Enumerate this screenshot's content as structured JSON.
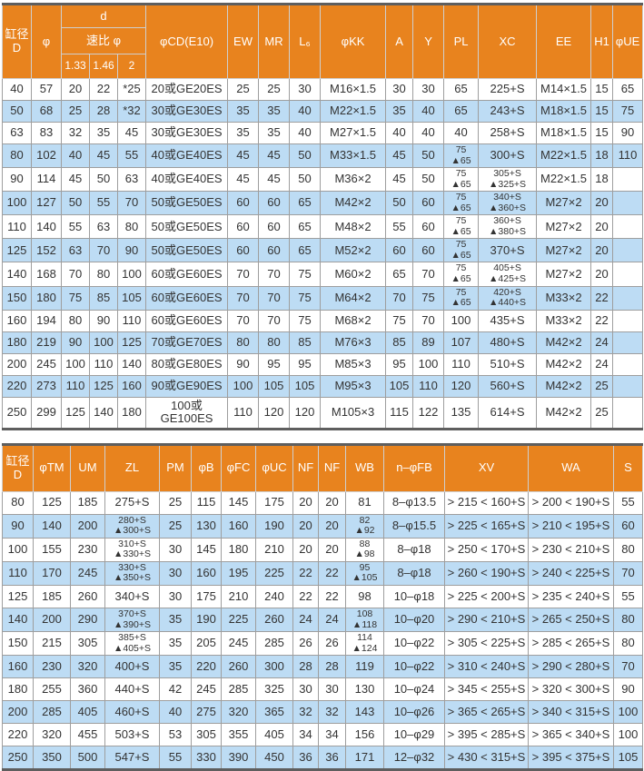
{
  "colors": {
    "header_bg": "#E8831E",
    "alt_row_bg": "#BDDCF4",
    "border_dark": "#5e5e5e",
    "border_light": "#9e9e9e",
    "header_text": "#ffffff",
    "body_text": "#333333"
  },
  "table1": {
    "headers": {
      "bore": "缸径\nD",
      "phi": "φ",
      "d_group": "d",
      "ratio": "速比 φ",
      "r133": "1.33",
      "r146": "1.46",
      "r2": "2",
      "cd": "φCD(E10)",
      "ew": "EW",
      "mr": "MR",
      "l6": "L₆",
      "kk": "φKK",
      "a": "A",
      "y": "Y",
      "pl": "PL",
      "xc": "XC",
      "ee": "EE",
      "h1": "H1",
      "ue": "φUE"
    },
    "rows": [
      [
        "40",
        "57",
        "20",
        "22",
        "*25",
        "20或GE20ES",
        "25",
        "25",
        "30",
        "M16×1.5",
        "30",
        "30",
        "65",
        "225+S",
        "M14×1.5",
        "15",
        "65"
      ],
      [
        "50",
        "68",
        "25",
        "28",
        "*32",
        "30或GE30ES",
        "35",
        "35",
        "40",
        "M22×1.5",
        "35",
        "40",
        "65",
        "243+S",
        "M18×1.5",
        "15",
        "75"
      ],
      [
        "63",
        "83",
        "32",
        "35",
        "45",
        "30或GE30ES",
        "35",
        "35",
        "40",
        "M27×1.5",
        "40",
        "40",
        "40",
        "258+S",
        "M18×1.5",
        "15",
        "90"
      ],
      [
        "80",
        "102",
        "40",
        "45",
        "55",
        "40或GE40ES",
        "45",
        "45",
        "50",
        "M33×1.5",
        "45",
        "50",
        "75\n▲65",
        "300+S",
        "M22×1.5",
        "18",
        "110"
      ],
      [
        "90",
        "114",
        "45",
        "50",
        "63",
        "40或GE40ES",
        "45",
        "45",
        "50",
        "M36×2",
        "45",
        "50",
        "75\n▲65",
        "305+S\n▲325+S",
        "M22×1.5",
        "18",
        ""
      ],
      [
        "100",
        "127",
        "50",
        "55",
        "70",
        "50或GE50ES",
        "60",
        "60",
        "65",
        "M42×2",
        "50",
        "60",
        "75\n▲65",
        "340+S\n▲360+S",
        "M27×2",
        "20",
        ""
      ],
      [
        "110",
        "140",
        "55",
        "63",
        "80",
        "50或GE50ES",
        "60",
        "60",
        "65",
        "M48×2",
        "55",
        "60",
        "75\n▲65",
        "360+S\n▲380+S",
        "M27×2",
        "20",
        ""
      ],
      [
        "125",
        "152",
        "63",
        "70",
        "90",
        "50或GE50ES",
        "60",
        "60",
        "65",
        "M52×2",
        "60",
        "60",
        "75\n▲65",
        "370+S",
        "M27×2",
        "20",
        ""
      ],
      [
        "140",
        "168",
        "70",
        "80",
        "100",
        "60或GE60ES",
        "70",
        "70",
        "75",
        "M60×2",
        "65",
        "70",
        "75\n▲65",
        "405+S\n▲425+S",
        "M27×2",
        "20",
        ""
      ],
      [
        "150",
        "180",
        "75",
        "85",
        "105",
        "60或GE60ES",
        "70",
        "70",
        "75",
        "M64×2",
        "70",
        "75",
        "75\n▲65",
        "420+S\n▲440+S",
        "M33×2",
        "22",
        ""
      ],
      [
        "160",
        "194",
        "80",
        "90",
        "110",
        "60或GE60ES",
        "70",
        "70",
        "75",
        "M68×2",
        "75",
        "70",
        "100",
        "435+S",
        "M33×2",
        "22",
        ""
      ],
      [
        "180",
        "219",
        "90",
        "100",
        "125",
        "70或GE70ES",
        "80",
        "80",
        "85",
        "M76×3",
        "85",
        "89",
        "107",
        "480+S",
        "M42×2",
        "24",
        ""
      ],
      [
        "200",
        "245",
        "100",
        "110",
        "140",
        "80或GE80ES",
        "90",
        "95",
        "95",
        "M85×3",
        "95",
        "100",
        "110",
        "510+S",
        "M42×2",
        "24",
        ""
      ],
      [
        "220",
        "273",
        "110",
        "125",
        "160",
        "90或GE90ES",
        "100",
        "105",
        "105",
        "M95×3",
        "105",
        "110",
        "120",
        "560+S",
        "M42×2",
        "25",
        ""
      ],
      [
        "250",
        "299",
        "125",
        "140",
        "180",
        "100或GE100ES",
        "110",
        "120",
        "120",
        "M105×3",
        "115",
        "122",
        "135",
        "614+S",
        "M42×2",
        "25",
        ""
      ]
    ]
  },
  "table2": {
    "headers": [
      "缸径\nD",
      "φTM",
      "UM",
      "ZL",
      "PM",
      "φB",
      "φFC",
      "φUC",
      "NF",
      "NF",
      "WB",
      "n–φFB",
      "XV",
      "WA",
      "S"
    ],
    "rows": [
      [
        "80",
        "125",
        "185",
        "275+S",
        "25",
        "115",
        "145",
        "175",
        "20",
        "20",
        "81",
        "8–φ13.5",
        "> 215 < 160+S",
        "> 200 < 190+S",
        "55"
      ],
      [
        "90",
        "140",
        "200",
        "280+S\n▲300+S",
        "25",
        "130",
        "160",
        "190",
        "20",
        "20",
        "82\n▲92",
        "8–φ15.5",
        "> 225 < 165+S",
        "> 210 < 195+S",
        "60"
      ],
      [
        "100",
        "155",
        "230",
        "310+S\n▲330+S",
        "30",
        "145",
        "180",
        "210",
        "20",
        "20",
        "88\n▲98",
        "8–φ18",
        "> 250 < 170+S",
        "> 230 < 210+S",
        "80"
      ],
      [
        "110",
        "170",
        "245",
        "330+S\n▲350+S",
        "30",
        "160",
        "195",
        "225",
        "22",
        "22",
        "95\n▲105",
        "8–φ18",
        "> 260 < 190+S",
        "> 240 < 225+S",
        "70"
      ],
      [
        "125",
        "185",
        "260",
        "340+S",
        "30",
        "175",
        "210",
        "240",
        "22",
        "22",
        "98",
        "10–φ18",
        "> 225 < 200+S",
        "> 235 < 240+S",
        "55"
      ],
      [
        "140",
        "200",
        "290",
        "370+S\n▲390+S",
        "35",
        "190",
        "225",
        "260",
        "24",
        "24",
        "108\n▲118",
        "10–φ20",
        "> 290 < 210+S",
        "> 265 < 250+S",
        "80"
      ],
      [
        "150",
        "215",
        "305",
        "385+S\n▲405+S",
        "35",
        "205",
        "245",
        "285",
        "26",
        "26",
        "114\n▲124",
        "10–φ22",
        "> 305 < 225+S",
        "> 285 < 265+S",
        "80"
      ],
      [
        "160",
        "230",
        "320",
        "400+S",
        "35",
        "220",
        "260",
        "300",
        "28",
        "28",
        "119",
        "10–φ22",
        "> 310 < 240+S",
        "> 290 < 280+S",
        "70"
      ],
      [
        "180",
        "255",
        "360",
        "440+S",
        "42",
        "245",
        "285",
        "325",
        "30",
        "30",
        "130",
        "10–φ24",
        "> 345 < 255+S",
        "> 320 < 300+S",
        "90"
      ],
      [
        "200",
        "285",
        "405",
        "460+S",
        "40",
        "275",
        "320",
        "365",
        "32",
        "32",
        "143",
        "10–φ26",
        "> 365 < 265+S",
        "> 340 < 315+S",
        "100"
      ],
      [
        "220",
        "320",
        "455",
        "503+S",
        "53",
        "305",
        "355",
        "405",
        "34",
        "34",
        "156",
        "10–φ29",
        "> 395 < 285+S",
        "> 365 < 340+S",
        "100"
      ],
      [
        "250",
        "350",
        "500",
        "547+S",
        "55",
        "330",
        "390",
        "450",
        "36",
        "36",
        "171",
        "12–φ32",
        "> 430 < 315+S",
        "> 395 < 375+S",
        "105"
      ]
    ]
  }
}
